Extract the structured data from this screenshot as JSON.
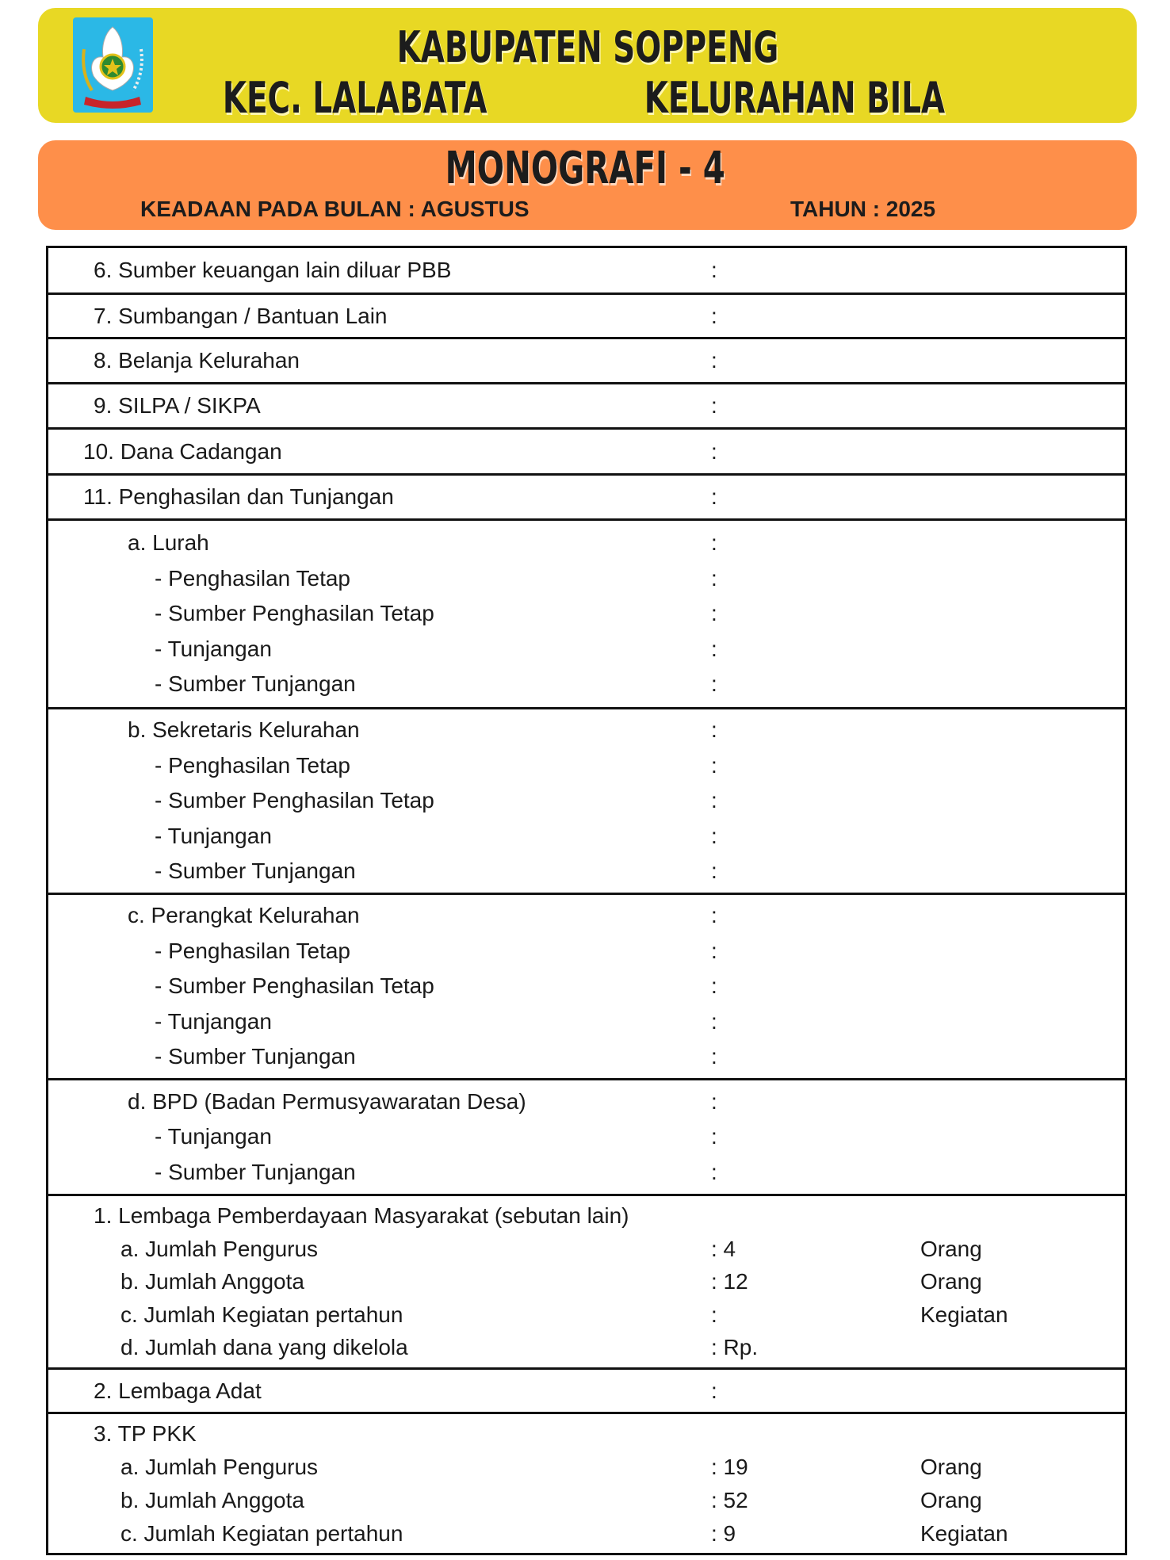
{
  "header": {
    "line1": "KABUPATEN SOPPENG",
    "kecamatan": "KEC. LALABATA",
    "kelurahan": "KELURAHAN BILA",
    "logo_text": "SOPPENG",
    "colors": {
      "yellow": "#e8d824",
      "orange": "#fe8f4a"
    }
  },
  "subheader": {
    "title": "MONOGRAFI - 4",
    "bulan": "KEADAAN PADA BULAN : AGUSTUS",
    "tahun": "TAHUN : 2025"
  },
  "rows": [
    {
      "lines": [
        {
          "label": "6. Sumber keuangan lain diluar PBB",
          "level": 0,
          "value": ":"
        }
      ]
    },
    {
      "lines": [
        {
          "label": "7. Sumbangan / Bantuan Lain",
          "level": 0,
          "value": ":"
        }
      ]
    },
    {
      "lines": [
        {
          "label": "8. Belanja Kelurahan",
          "level": 0,
          "value": ":"
        }
      ]
    },
    {
      "lines": [
        {
          "label": "9. SILPA / SIKPA",
          "level": 0,
          "value": ":"
        }
      ]
    },
    {
      "lines": [
        {
          "label": "10. Dana Cadangan",
          "level": -1,
          "value": ":"
        }
      ]
    },
    {
      "lines": [
        {
          "label": "11. Penghasilan dan Tunjangan",
          "level": -1,
          "value": ":"
        }
      ]
    },
    {
      "lines": [
        {
          "label": "a. Lurah",
          "level": 1,
          "value": ":"
        },
        {
          "label": "- Penghasilan Tetap",
          "level": 2,
          "value": ":"
        },
        {
          "label": "- Sumber Penghasilan Tetap",
          "level": 2,
          "value": ":"
        },
        {
          "label": "- Tunjangan",
          "level": 2,
          "value": ":"
        },
        {
          "label": "- Sumber Tunjangan",
          "level": 2,
          "value": ":"
        }
      ]
    },
    {
      "lines": [
        {
          "label": "b. Sekretaris Kelurahan",
          "level": 1,
          "value": ":"
        },
        {
          "label": "- Penghasilan Tetap",
          "level": 2,
          "value": ":"
        },
        {
          "label": "- Sumber Penghasilan Tetap",
          "level": 2,
          "value": ":"
        },
        {
          "label": "- Tunjangan",
          "level": 2,
          "value": ":"
        },
        {
          "label": "- Sumber Tunjangan",
          "level": 2,
          "value": ":"
        }
      ]
    },
    {
      "lines": [
        {
          "label": "c. Perangkat Kelurahan",
          "level": 1,
          "value": ":"
        },
        {
          "label": "- Penghasilan Tetap",
          "level": 2,
          "value": ":"
        },
        {
          "label": "- Sumber Penghasilan Tetap",
          "level": 2,
          "value": ":"
        },
        {
          "label": "- Tunjangan",
          "level": 2,
          "value": ":"
        },
        {
          "label": "- Sumber Tunjangan",
          "level": 2,
          "value": ":"
        }
      ]
    },
    {
      "lines": [
        {
          "label": "d. BPD (Badan Permusyawaratan Desa)",
          "level": 1,
          "value": ":"
        },
        {
          "label": "- Tunjangan",
          "level": 2,
          "value": ":"
        },
        {
          "label": "- Sumber Tunjangan",
          "level": 2,
          "value": ":"
        }
      ]
    },
    {
      "lines": [
        {
          "label": "1. Lembaga Pemberdayaan Masyarakat (sebutan lain)",
          "level": 0
        },
        {
          "label": "a. Jumlah Pengurus",
          "level": 3,
          "value": ": 4",
          "unit": "Orang"
        },
        {
          "label": "b. Jumlah Anggota",
          "level": 3,
          "value": ": 12",
          "unit": "Orang"
        },
        {
          "label": "c. Jumlah Kegiatan pertahun",
          "level": 3,
          "value": ":",
          "unit": "Kegiatan"
        },
        {
          "label": "d. Jumlah dana yang dikelola",
          "level": 3,
          "value": ": Rp."
        }
      ]
    },
    {
      "lines": [
        {
          "label": "2. Lembaga Adat",
          "level": 0,
          "value": ":"
        }
      ]
    },
    {
      "lines": [
        {
          "label": "3. TP PKK",
          "level": 0
        },
        {
          "label": "a. Jumlah Pengurus",
          "level": 3,
          "value": ": 19",
          "unit": "Orang"
        },
        {
          "label": "b. Jumlah Anggota",
          "level": 3,
          "value": ": 52",
          "unit": "Orang"
        },
        {
          "label": "c. Jumlah Kegiatan pertahun",
          "level": 3,
          "value": ": 9",
          "unit": "Kegiatan"
        }
      ]
    }
  ]
}
